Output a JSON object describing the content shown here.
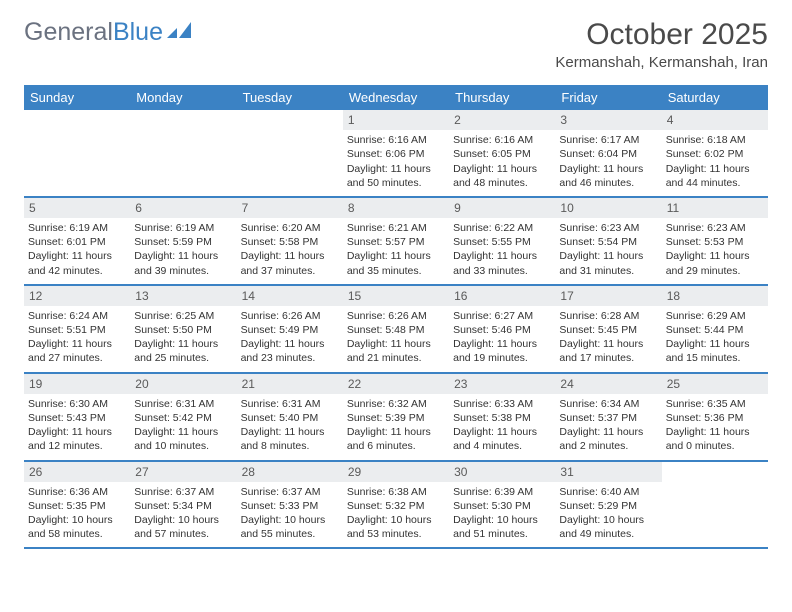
{
  "logo": {
    "textGray": "General",
    "textBlue": "Blue"
  },
  "title": "October 2025",
  "location": "Kermanshah, Kermanshah, Iran",
  "weekdays": [
    "Sunday",
    "Monday",
    "Tuesday",
    "Wednesday",
    "Thursday",
    "Friday",
    "Saturday"
  ],
  "colors": {
    "header_bg": "#3b82c4",
    "header_text": "#ffffff",
    "daynum_bg": "#ebedef",
    "border": "#3b82c4",
    "body_text": "#333333"
  },
  "weeks": [
    [
      null,
      null,
      null,
      {
        "n": "1",
        "sr": "Sunrise: 6:16 AM",
        "ss": "Sunset: 6:06 PM",
        "dl": "Daylight: 11 hours and 50 minutes."
      },
      {
        "n": "2",
        "sr": "Sunrise: 6:16 AM",
        "ss": "Sunset: 6:05 PM",
        "dl": "Daylight: 11 hours and 48 minutes."
      },
      {
        "n": "3",
        "sr": "Sunrise: 6:17 AM",
        "ss": "Sunset: 6:04 PM",
        "dl": "Daylight: 11 hours and 46 minutes."
      },
      {
        "n": "4",
        "sr": "Sunrise: 6:18 AM",
        "ss": "Sunset: 6:02 PM",
        "dl": "Daylight: 11 hours and 44 minutes."
      }
    ],
    [
      {
        "n": "5",
        "sr": "Sunrise: 6:19 AM",
        "ss": "Sunset: 6:01 PM",
        "dl": "Daylight: 11 hours and 42 minutes."
      },
      {
        "n": "6",
        "sr": "Sunrise: 6:19 AM",
        "ss": "Sunset: 5:59 PM",
        "dl": "Daylight: 11 hours and 39 minutes."
      },
      {
        "n": "7",
        "sr": "Sunrise: 6:20 AM",
        "ss": "Sunset: 5:58 PM",
        "dl": "Daylight: 11 hours and 37 minutes."
      },
      {
        "n": "8",
        "sr": "Sunrise: 6:21 AM",
        "ss": "Sunset: 5:57 PM",
        "dl": "Daylight: 11 hours and 35 minutes."
      },
      {
        "n": "9",
        "sr": "Sunrise: 6:22 AM",
        "ss": "Sunset: 5:55 PM",
        "dl": "Daylight: 11 hours and 33 minutes."
      },
      {
        "n": "10",
        "sr": "Sunrise: 6:23 AM",
        "ss": "Sunset: 5:54 PM",
        "dl": "Daylight: 11 hours and 31 minutes."
      },
      {
        "n": "11",
        "sr": "Sunrise: 6:23 AM",
        "ss": "Sunset: 5:53 PM",
        "dl": "Daylight: 11 hours and 29 minutes."
      }
    ],
    [
      {
        "n": "12",
        "sr": "Sunrise: 6:24 AM",
        "ss": "Sunset: 5:51 PM",
        "dl": "Daylight: 11 hours and 27 minutes."
      },
      {
        "n": "13",
        "sr": "Sunrise: 6:25 AM",
        "ss": "Sunset: 5:50 PM",
        "dl": "Daylight: 11 hours and 25 minutes."
      },
      {
        "n": "14",
        "sr": "Sunrise: 6:26 AM",
        "ss": "Sunset: 5:49 PM",
        "dl": "Daylight: 11 hours and 23 minutes."
      },
      {
        "n": "15",
        "sr": "Sunrise: 6:26 AM",
        "ss": "Sunset: 5:48 PM",
        "dl": "Daylight: 11 hours and 21 minutes."
      },
      {
        "n": "16",
        "sr": "Sunrise: 6:27 AM",
        "ss": "Sunset: 5:46 PM",
        "dl": "Daylight: 11 hours and 19 minutes."
      },
      {
        "n": "17",
        "sr": "Sunrise: 6:28 AM",
        "ss": "Sunset: 5:45 PM",
        "dl": "Daylight: 11 hours and 17 minutes."
      },
      {
        "n": "18",
        "sr": "Sunrise: 6:29 AM",
        "ss": "Sunset: 5:44 PM",
        "dl": "Daylight: 11 hours and 15 minutes."
      }
    ],
    [
      {
        "n": "19",
        "sr": "Sunrise: 6:30 AM",
        "ss": "Sunset: 5:43 PM",
        "dl": "Daylight: 11 hours and 12 minutes."
      },
      {
        "n": "20",
        "sr": "Sunrise: 6:31 AM",
        "ss": "Sunset: 5:42 PM",
        "dl": "Daylight: 11 hours and 10 minutes."
      },
      {
        "n": "21",
        "sr": "Sunrise: 6:31 AM",
        "ss": "Sunset: 5:40 PM",
        "dl": "Daylight: 11 hours and 8 minutes."
      },
      {
        "n": "22",
        "sr": "Sunrise: 6:32 AM",
        "ss": "Sunset: 5:39 PM",
        "dl": "Daylight: 11 hours and 6 minutes."
      },
      {
        "n": "23",
        "sr": "Sunrise: 6:33 AM",
        "ss": "Sunset: 5:38 PM",
        "dl": "Daylight: 11 hours and 4 minutes."
      },
      {
        "n": "24",
        "sr": "Sunrise: 6:34 AM",
        "ss": "Sunset: 5:37 PM",
        "dl": "Daylight: 11 hours and 2 minutes."
      },
      {
        "n": "25",
        "sr": "Sunrise: 6:35 AM",
        "ss": "Sunset: 5:36 PM",
        "dl": "Daylight: 11 hours and 0 minutes."
      }
    ],
    [
      {
        "n": "26",
        "sr": "Sunrise: 6:36 AM",
        "ss": "Sunset: 5:35 PM",
        "dl": "Daylight: 10 hours and 58 minutes."
      },
      {
        "n": "27",
        "sr": "Sunrise: 6:37 AM",
        "ss": "Sunset: 5:34 PM",
        "dl": "Daylight: 10 hours and 57 minutes."
      },
      {
        "n": "28",
        "sr": "Sunrise: 6:37 AM",
        "ss": "Sunset: 5:33 PM",
        "dl": "Daylight: 10 hours and 55 minutes."
      },
      {
        "n": "29",
        "sr": "Sunrise: 6:38 AM",
        "ss": "Sunset: 5:32 PM",
        "dl": "Daylight: 10 hours and 53 minutes."
      },
      {
        "n": "30",
        "sr": "Sunrise: 6:39 AM",
        "ss": "Sunset: 5:30 PM",
        "dl": "Daylight: 10 hours and 51 minutes."
      },
      {
        "n": "31",
        "sr": "Sunrise: 6:40 AM",
        "ss": "Sunset: 5:29 PM",
        "dl": "Daylight: 10 hours and 49 minutes."
      },
      null
    ]
  ]
}
